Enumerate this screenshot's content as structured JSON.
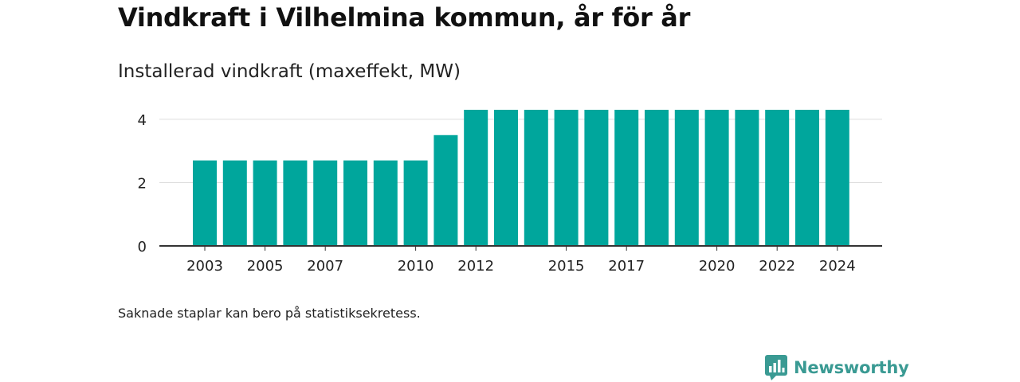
{
  "title": "Vindkraft i Vilhelmina kommun, år för år",
  "subtitle": "Installerad vindkraft (maxeffekt, MW)",
  "note": "Saknade staplar kan bero på statistiksekretess.",
  "brand": {
    "name": "Newsworthy",
    "icon": "newsworthy-logo-icon",
    "color": "#3a9a93"
  },
  "colors": {
    "bar": "#00a69c",
    "grid": "#dddddd",
    "axis": "#333333",
    "text": "#222222"
  },
  "chart_data": {
    "type": "bar",
    "title": "Vindkraft i Vilhelmina kommun, år för år",
    "subtitle": "Installerad vindkraft (maxeffekt, MW)",
    "xlabel": "",
    "ylabel": "",
    "categories": [
      2003,
      2004,
      2005,
      2006,
      2007,
      2008,
      2009,
      2010,
      2011,
      2012,
      2013,
      2014,
      2015,
      2016,
      2017,
      2018,
      2019,
      2020,
      2021,
      2022,
      2023,
      2024
    ],
    "values": [
      2.7,
      2.7,
      2.7,
      2.7,
      2.7,
      2.7,
      2.7,
      2.7,
      3.5,
      4.3,
      4.3,
      4.3,
      4.3,
      4.3,
      4.3,
      4.3,
      4.3,
      4.3,
      4.3,
      4.3,
      4.3,
      4.3
    ],
    "xticks": [
      2003,
      2005,
      2007,
      2010,
      2012,
      2015,
      2017,
      2020,
      2022,
      2024
    ],
    "yticks": [
      0,
      2,
      4
    ],
    "ylim": [
      0,
      4.5
    ],
    "grid": true,
    "legend": "none"
  }
}
